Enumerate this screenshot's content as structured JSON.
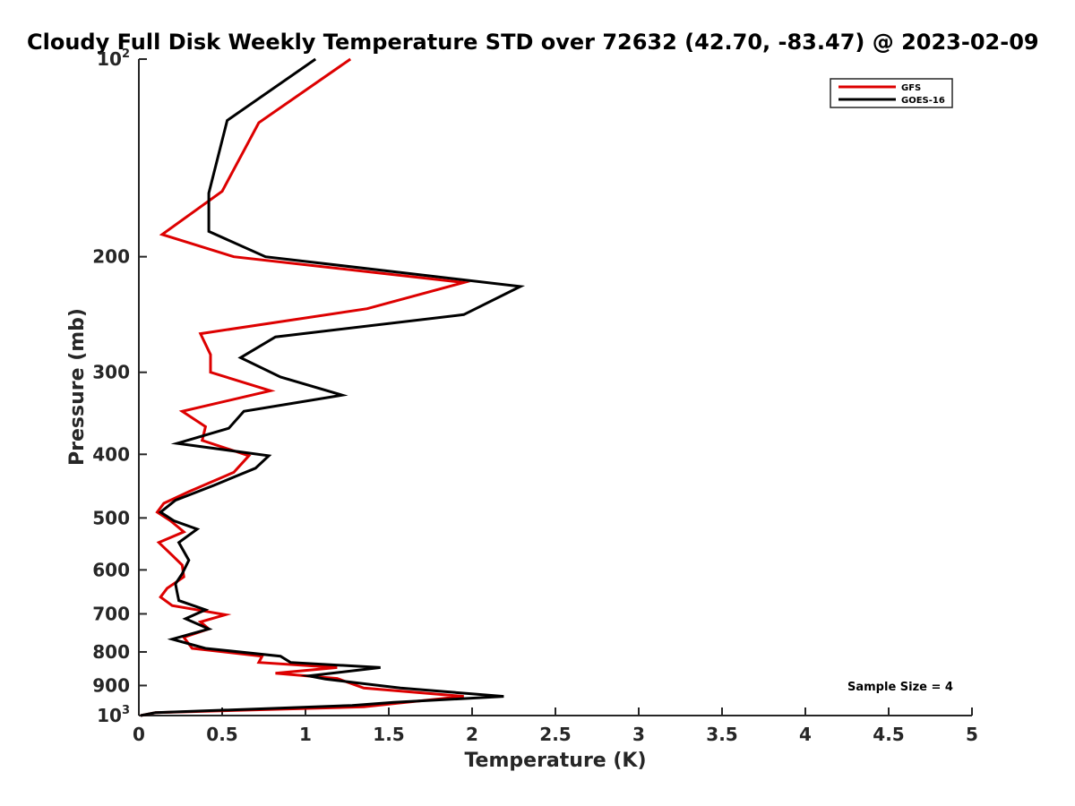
{
  "chart_data": {
    "type": "line",
    "title": "Cloudy Full Disk Weekly Temperature STD over 72632 (42.70, -83.47) @ 2023-02-09",
    "xlabel": "Temperature (K)",
    "ylabel": "Pressure (mb)",
    "xlim": [
      0,
      5
    ],
    "ylim": [
      100,
      1000
    ],
    "y_scale": "log",
    "y_reversed": true,
    "x_ticks": [
      0,
      0.5,
      1,
      1.5,
      2,
      2.5,
      3,
      3.5,
      4,
      4.5,
      5
    ],
    "x_tick_labels": [
      "0",
      "0.5",
      "1",
      "1.5",
      "2",
      "2.5",
      "3",
      "3.5",
      "4",
      "4.5",
      "5"
    ],
    "y_ticks": [
      {
        "value": 100,
        "base": "10",
        "exp": "2",
        "label": ""
      },
      {
        "value": 200,
        "base": "",
        "exp": "",
        "label": "200"
      },
      {
        "value": 300,
        "base": "",
        "exp": "",
        "label": "300"
      },
      {
        "value": 400,
        "base": "",
        "exp": "",
        "label": "400"
      },
      {
        "value": 500,
        "base": "",
        "exp": "",
        "label": "500"
      },
      {
        "value": 600,
        "base": "",
        "exp": "",
        "label": "600"
      },
      {
        "value": 700,
        "base": "",
        "exp": "",
        "label": "700"
      },
      {
        "value": 800,
        "base": "",
        "exp": "",
        "label": "800"
      },
      {
        "value": 900,
        "base": "",
        "exp": "",
        "label": "900"
      },
      {
        "value": 1000,
        "base": "10",
        "exp": "3",
        "label": ""
      }
    ],
    "grid": false,
    "legend_position": "top-right",
    "annotation": "Sample Size = 4",
    "series": [
      {
        "name": "GFS",
        "color": "#dd0000",
        "points": [
          [
            1.27,
            100
          ],
          [
            0.72,
            125
          ],
          [
            0.5,
            159
          ],
          [
            0.14,
            185
          ],
          [
            0.57,
            200
          ],
          [
            1.95,
            219
          ],
          [
            1.37,
            240
          ],
          [
            0.37,
            262
          ],
          [
            0.43,
            282
          ],
          [
            0.43,
            300
          ],
          [
            0.79,
            320
          ],
          [
            0.26,
            344
          ],
          [
            0.4,
            363
          ],
          [
            0.38,
            381
          ],
          [
            0.66,
            402
          ],
          [
            0.57,
            426
          ],
          [
            0.3,
            456
          ],
          [
            0.15,
            475
          ],
          [
            0.11,
            490
          ],
          [
            0.19,
            505
          ],
          [
            0.27,
            525
          ],
          [
            0.12,
            545
          ],
          [
            0.2,
            570
          ],
          [
            0.26,
            590
          ],
          [
            0.27,
            615
          ],
          [
            0.17,
            640
          ],
          [
            0.13,
            660
          ],
          [
            0.2,
            680
          ],
          [
            0.52,
            702
          ],
          [
            0.37,
            720
          ],
          [
            0.42,
            738
          ],
          [
            0.27,
            760
          ],
          [
            0.32,
            790
          ],
          [
            0.74,
            812
          ],
          [
            0.72,
            830
          ],
          [
            1.19,
            845
          ],
          [
            0.82,
            862
          ],
          [
            1.19,
            878
          ],
          [
            1.35,
            908
          ],
          [
            1.95,
            935
          ],
          [
            1.55,
            958
          ],
          [
            1.35,
            970
          ],
          [
            0.1,
            990
          ],
          [
            0.01,
            1000
          ]
        ]
      },
      {
        "name": "GOES-16",
        "color": "#000000",
        "points": [
          [
            1.06,
            100
          ],
          [
            0.53,
            124
          ],
          [
            0.42,
            160
          ],
          [
            0.42,
            183
          ],
          [
            0.76,
            200
          ],
          [
            2.29,
            222
          ],
          [
            1.95,
            245
          ],
          [
            0.82,
            265
          ],
          [
            0.61,
            285
          ],
          [
            0.85,
            305
          ],
          [
            1.22,
            325
          ],
          [
            0.63,
            344
          ],
          [
            0.54,
            365
          ],
          [
            0.23,
            385
          ],
          [
            0.78,
            402
          ],
          [
            0.7,
            420
          ],
          [
            0.45,
            446
          ],
          [
            0.22,
            470
          ],
          [
            0.13,
            490
          ],
          [
            0.21,
            505
          ],
          [
            0.35,
            520
          ],
          [
            0.24,
            545
          ],
          [
            0.3,
            580
          ],
          [
            0.26,
            608
          ],
          [
            0.22,
            630
          ],
          [
            0.23,
            650
          ],
          [
            0.24,
            668
          ],
          [
            0.4,
            690
          ],
          [
            0.28,
            712
          ],
          [
            0.42,
            738
          ],
          [
            0.2,
            765
          ],
          [
            0.4,
            790
          ],
          [
            0.85,
            812
          ],
          [
            0.91,
            830
          ],
          [
            1.45,
            845
          ],
          [
            1.02,
            870
          ],
          [
            1.12,
            880
          ],
          [
            1.57,
            908
          ],
          [
            2.19,
            935
          ],
          [
            1.53,
            955
          ],
          [
            1.28,
            965
          ],
          [
            0.1,
            990
          ],
          [
            0.01,
            1000
          ]
        ]
      }
    ]
  }
}
